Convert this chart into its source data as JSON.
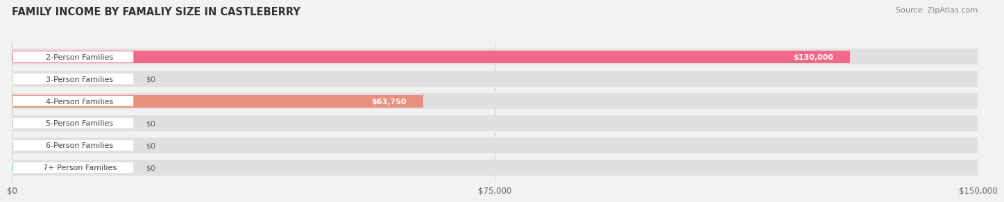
{
  "title": "FAMILY INCOME BY FAMALIY SIZE IN CASTLEBERRY",
  "source": "Source: ZipAtlas.com",
  "categories": [
    "2-Person Families",
    "3-Person Families",
    "4-Person Families",
    "5-Person Families",
    "6-Person Families",
    "7+ Person Families"
  ],
  "values": [
    130000,
    0,
    63750,
    0,
    0,
    0
  ],
  "bar_colors": [
    "#F4698A",
    "#F5C08A",
    "#E89080",
    "#A8BEEF",
    "#C8A8D8",
    "#7ECEC8"
  ],
  "value_labels": [
    "$130,000",
    "$0",
    "$63,750",
    "$0",
    "$0",
    "$0"
  ],
  "value_label_inside": [
    true,
    false,
    true,
    false,
    false,
    false
  ],
  "xlim": [
    0,
    150000
  ],
  "xticks": [
    0,
    75000,
    150000
  ],
  "xtick_labels": [
    "$0",
    "$75,000",
    "$150,000"
  ],
  "background_color": "#f2f2f2",
  "bar_background": "#e0e0e0",
  "title_fontsize": 10.5,
  "source_fontsize": 8,
  "bar_label_fontsize": 8,
  "value_label_fontsize": 8
}
